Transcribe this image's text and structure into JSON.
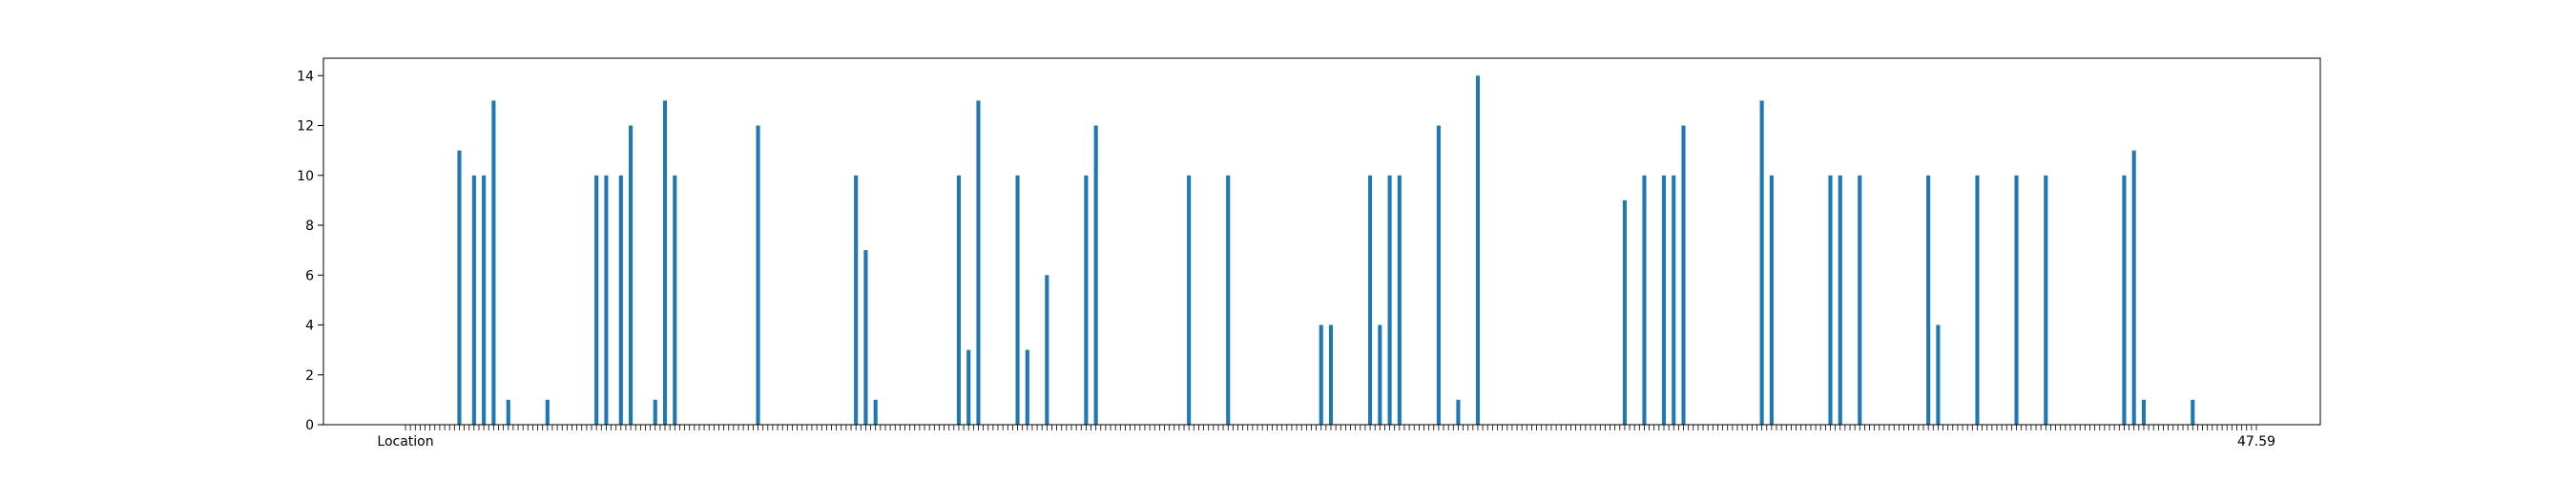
{
  "chart_data": {
    "type": "bar",
    "title": "",
    "xlabel": "",
    "ylabel": "",
    "ylim": [
      0,
      14.7
    ],
    "yticks": [
      0,
      2,
      4,
      6,
      8,
      10,
      12,
      14
    ],
    "first_category_label": "Location",
    "last_category_label": "47.59",
    "bar_color": "#1f77b4",
    "grid": false,
    "legend": "none",
    "values": [
      0,
      0,
      0,
      0,
      0,
      0,
      0,
      0,
      0,
      0,
      0,
      11,
      0,
      0,
      10,
      0,
      10,
      0,
      13,
      0,
      0,
      1,
      0,
      0,
      0,
      0,
      0,
      0,
      0,
      1,
      0,
      0,
      0,
      0,
      0,
      0,
      0,
      0,
      0,
      10,
      0,
      10,
      0,
      0,
      10,
      0,
      12,
      0,
      0,
      0,
      0,
      1,
      0,
      13,
      0,
      10,
      0,
      0,
      0,
      0,
      0,
      0,
      0,
      0,
      0,
      0,
      0,
      0,
      0,
      0,
      0,
      0,
      12,
      0,
      0,
      0,
      0,
      0,
      0,
      0,
      0,
      0,
      0,
      0,
      0,
      0,
      0,
      0,
      0,
      0,
      0,
      0,
      10,
      0,
      7,
      0,
      1,
      0,
      0,
      0,
      0,
      0,
      0,
      0,
      0,
      0,
      0,
      0,
      0,
      0,
      0,
      0,
      0,
      10,
      0,
      3,
      0,
      13,
      0,
      0,
      0,
      0,
      0,
      0,
      0,
      10,
      0,
      3,
      0,
      0,
      0,
      6,
      0,
      0,
      0,
      0,
      0,
      0,
      0,
      10,
      0,
      12,
      0,
      0,
      0,
      0,
      0,
      0,
      0,
      0,
      0,
      0,
      0,
      0,
      0,
      0,
      0,
      0,
      0,
      0,
      10,
      0,
      0,
      0,
      0,
      0,
      0,
      0,
      10,
      0,
      0,
      0,
      0,
      0,
      0,
      0,
      0,
      0,
      0,
      0,
      0,
      0,
      0,
      0,
      0,
      0,
      0,
      4,
      0,
      4,
      0,
      0,
      0,
      0,
      0,
      0,
      0,
      10,
      0,
      4,
      0,
      10,
      0,
      10,
      0,
      0,
      0,
      0,
      0,
      0,
      0,
      12,
      0,
      0,
      0,
      1,
      0,
      0,
      0,
      14,
      0,
      0,
      0,
      0,
      0,
      0,
      0,
      0,
      0,
      0,
      0,
      0,
      0,
      0,
      0,
      0,
      0,
      0,
      0,
      0,
      0,
      0,
      0,
      0,
      0,
      0,
      0,
      0,
      0,
      9,
      0,
      0,
      0,
      10,
      0,
      0,
      0,
      10,
      0,
      10,
      0,
      12,
      0,
      0,
      0,
      0,
      0,
      0,
      0,
      0,
      0,
      0,
      0,
      0,
      0,
      0,
      0,
      13,
      0,
      10,
      0,
      0,
      0,
      0,
      0,
      0,
      0,
      0,
      0,
      0,
      0,
      10,
      0,
      10,
      0,
      0,
      0,
      10,
      0,
      0,
      0,
      0,
      0,
      0,
      0,
      0,
      0,
      0,
      0,
      0,
      0,
      10,
      0,
      4,
      0,
      0,
      0,
      0,
      0,
      0,
      0,
      10,
      0,
      0,
      0,
      0,
      0,
      0,
      0,
      10,
      0,
      0,
      0,
      0,
      0,
      10,
      0,
      0,
      0,
      0,
      0,
      0,
      0,
      0,
      0,
      0,
      0,
      0,
      0,
      0,
      0,
      10,
      0,
      11,
      0,
      1,
      0,
      0,
      0,
      0,
      0,
      0,
      0,
      0,
      0,
      1,
      0,
      0,
      0,
      0,
      0,
      0,
      0,
      0,
      0,
      0,
      0,
      0,
      0
    ]
  }
}
